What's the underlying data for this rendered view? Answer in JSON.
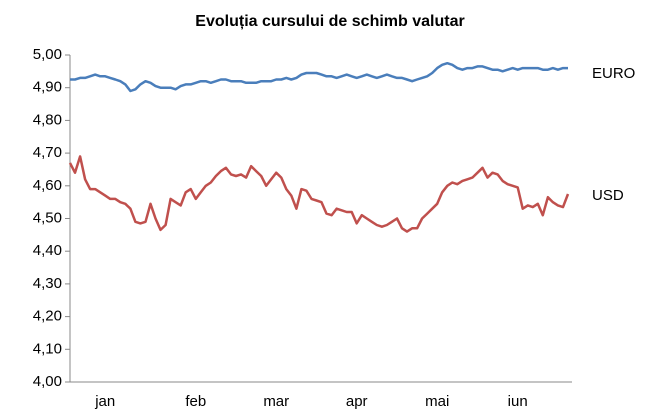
{
  "chart_data": {
    "type": "line",
    "title": "Evoluția cursului de schimb valutar",
    "categories": [
      null,
      null,
      null,
      null,
      null,
      null,
      null,
      "jan",
      null,
      null,
      null,
      null,
      null,
      null,
      null,
      null,
      null,
      null,
      null,
      null,
      null,
      null,
      null,
      null,
      null,
      "feb",
      null,
      null,
      null,
      null,
      null,
      null,
      null,
      null,
      null,
      null,
      null,
      null,
      null,
      null,
      null,
      "mar",
      null,
      null,
      null,
      null,
      null,
      null,
      null,
      null,
      null,
      null,
      null,
      null,
      null,
      null,
      null,
      "apr",
      null,
      null,
      null,
      null,
      null,
      null,
      null,
      null,
      null,
      null,
      null,
      null,
      null,
      null,
      null,
      "mai",
      null,
      null,
      null,
      null,
      null,
      null,
      null,
      null,
      null,
      null,
      null,
      null,
      null,
      null,
      null,
      "iun",
      null,
      null,
      null,
      null,
      null,
      null,
      null,
      null,
      null,
      null
    ],
    "series": [
      {
        "name": "EURO",
        "color": "#4a7ebb",
        "values": [
          4.925,
          4.925,
          4.93,
          4.93,
          4.935,
          4.94,
          4.935,
          4.935,
          4.93,
          4.925,
          4.92,
          4.91,
          4.89,
          4.895,
          4.91,
          4.92,
          4.915,
          4.905,
          4.9,
          4.9,
          4.9,
          4.895,
          4.905,
          4.91,
          4.91,
          4.915,
          4.92,
          4.92,
          4.915,
          4.92,
          4.925,
          4.925,
          4.92,
          4.92,
          4.92,
          4.915,
          4.915,
          4.915,
          4.92,
          4.92,
          4.92,
          4.925,
          4.925,
          4.93,
          4.925,
          4.93,
          4.94,
          4.945,
          4.945,
          4.945,
          4.94,
          4.935,
          4.935,
          4.93,
          4.935,
          4.94,
          4.935,
          4.93,
          4.935,
          4.94,
          4.935,
          4.93,
          4.935,
          4.94,
          4.935,
          4.93,
          4.93,
          4.925,
          4.92,
          4.925,
          4.93,
          4.935,
          4.945,
          4.96,
          4.97,
          4.975,
          4.97,
          4.96,
          4.955,
          4.96,
          4.96,
          4.965,
          4.965,
          4.96,
          4.955,
          4.955,
          4.95,
          4.955,
          4.96,
          4.955,
          4.96,
          4.96,
          4.96,
          4.96,
          4.955,
          4.955,
          4.96,
          4.955,
          4.96,
          4.96
        ]
      },
      {
        "name": "USD",
        "color": "#c0504d",
        "values": [
          4.67,
          4.64,
          4.69,
          4.62,
          4.59,
          4.59,
          4.58,
          4.57,
          4.56,
          4.56,
          4.55,
          4.545,
          4.53,
          4.49,
          4.485,
          4.49,
          4.545,
          4.5,
          4.465,
          4.48,
          4.56,
          4.55,
          4.54,
          4.58,
          4.59,
          4.56,
          4.58,
          4.6,
          4.61,
          4.63,
          4.645,
          4.655,
          4.635,
          4.63,
          4.635,
          4.625,
          4.66,
          4.645,
          4.63,
          4.6,
          4.62,
          4.64,
          4.625,
          4.59,
          4.57,
          4.53,
          4.59,
          4.585,
          4.56,
          4.555,
          4.55,
          4.515,
          4.51,
          4.53,
          4.525,
          4.52,
          4.52,
          4.485,
          4.51,
          4.5,
          4.49,
          4.48,
          4.475,
          4.48,
          4.49,
          4.5,
          4.47,
          4.46,
          4.47,
          4.47,
          4.5,
          4.515,
          4.53,
          4.545,
          4.58,
          4.6,
          4.61,
          4.605,
          4.615,
          4.62,
          4.625,
          4.64,
          4.655,
          4.625,
          4.64,
          4.635,
          4.615,
          4.605,
          4.6,
          4.595,
          4.53,
          4.54,
          4.535,
          4.545,
          4.51,
          4.565,
          4.55,
          4.54,
          4.535,
          4.575
        ]
      }
    ],
    "ylim": [
      4,
      5
    ],
    "yticks": [
      {
        "value": 4,
        "label": "4,00"
      },
      {
        "value": 4.1,
        "label": "4,10"
      },
      {
        "value": 4.2,
        "label": "4,20"
      },
      {
        "value": 4.3,
        "label": "4,30"
      },
      {
        "value": 4.4,
        "label": "4,40"
      },
      {
        "value": 4.5,
        "label": "4,50"
      },
      {
        "value": 4.6,
        "label": "4,60"
      },
      {
        "value": 4.7,
        "label": "4,70"
      },
      {
        "value": 4.8,
        "label": "4,80"
      },
      {
        "value": 4.9,
        "label": "4,90"
      },
      {
        "value": 5,
        "label": "5,00"
      }
    ],
    "grid": false
  }
}
